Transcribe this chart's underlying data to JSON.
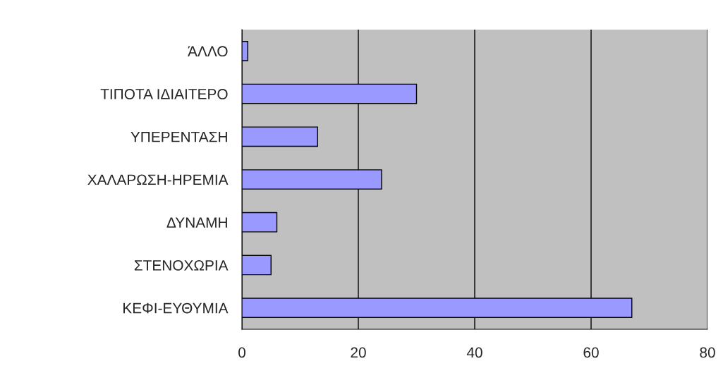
{
  "chart_data": {
    "type": "bar",
    "orientation": "horizontal",
    "categories": [
      "ΆΛΛΟ",
      "ΤΙΠΟΤΑ ΙΔΙΑΙΤΕΡΟ",
      "ΥΠΕΡΕΝΤΑΣΗ",
      "ΧΑΛΑΡΩΣΗ-ΗΡΕΜΙΑ",
      "ΔΥΝΑΜΗ",
      "ΣΤΕΝΟΧΩΡΙΑ",
      "ΚΕΦΙ-ΕΥΘΥΜΙΑ"
    ],
    "values": [
      1,
      30,
      13,
      24,
      6,
      5,
      67
    ],
    "color": "#9999ff",
    "xlim": [
      0,
      80
    ],
    "xticks": [
      0,
      20,
      40,
      60,
      80
    ],
    "grid": "x",
    "legend": false
  }
}
